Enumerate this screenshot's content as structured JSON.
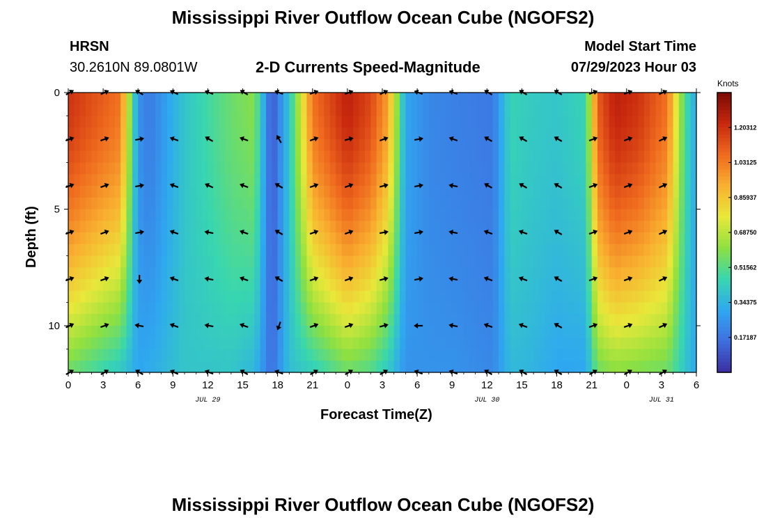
{
  "header": {
    "title": "Mississippi River Outflow Ocean Cube (NGOFS2)",
    "station": "HRSN",
    "coords": "30.2610N  89.0801W",
    "subtitle": "2-D Currents Speed-Magnitude",
    "model_start_label": "Model Start Time",
    "model_start_value": "07/29/2023 Hour 03"
  },
  "footer": {
    "title_repeat": "Mississippi River Outflow Ocean Cube (NGOFS2)"
  },
  "colors": {
    "colormap": [
      "#3b2ea0",
      "#3f6fe0",
      "#2fa8f0",
      "#38d6b0",
      "#8ee040",
      "#e8e83a",
      "#f9b030",
      "#ef6a1e",
      "#c8280e",
      "#7a0a04"
    ]
  },
  "chart_data": {
    "type": "heatmap",
    "title": "2-D Currents Speed-Magnitude",
    "xlabel": "Forecast Time(Z)",
    "ylabel": "Depth (ft)",
    "x_ticks": [
      "0",
      "3",
      "6",
      "9",
      "12",
      "15",
      "18",
      "21",
      "0",
      "3",
      "6",
      "9",
      "12",
      "15",
      "18",
      "21",
      "0",
      "3",
      "6"
    ],
    "x_hours": [
      0,
      3,
      6,
      9,
      12,
      15,
      18,
      21,
      24,
      27,
      30,
      33,
      36,
      39,
      42,
      45,
      48,
      51,
      54
    ],
    "y_ticks": [
      "0",
      "5",
      "10"
    ],
    "y_tick_values": [
      0,
      5,
      10
    ],
    "xlim": [
      0,
      54
    ],
    "ylim": [
      0,
      12
    ],
    "y_inverted": true,
    "date_labels": [
      "JUL 29",
      "JUL 30",
      "JUL 31"
    ],
    "date_label_hours": [
      12,
      36,
      51
    ],
    "colorbar": {
      "units": "Knots",
      "range": [
        0,
        1.375
      ],
      "tick_labels": [
        "1.20312",
        "1.03125",
        "0.85937",
        "0.68750",
        "0.51562",
        "0.34375",
        "0.17187"
      ],
      "tick_values": [
        1.20312,
        1.03125,
        0.85937,
        0.6875,
        0.51562,
        0.34375,
        0.17187
      ]
    },
    "grid": false,
    "speed_hours": [
      0,
      4.5,
      6,
      7,
      10,
      14,
      16,
      17.5,
      19,
      21,
      24,
      26,
      27.5,
      29,
      31,
      33,
      36.5,
      38,
      39.5,
      42,
      44.5,
      45.5,
      47,
      49,
      51.5,
      53,
      54
    ],
    "surface_speed": [
      1.2,
      1.05,
      0.25,
      0.18,
      0.4,
      0.55,
      0.6,
      0.08,
      0.4,
      1.05,
      1.25,
      1.15,
      0.95,
      0.3,
      0.22,
      0.2,
      0.18,
      0.45,
      0.42,
      0.4,
      0.45,
      1.1,
      1.25,
      1.2,
      1.05,
      0.5,
      0.3
    ],
    "bottom_speed": [
      0.55,
      0.4,
      0.3,
      0.32,
      0.4,
      0.4,
      0.35,
      0.15,
      0.38,
      0.42,
      0.55,
      0.5,
      0.4,
      0.25,
      0.25,
      0.25,
      0.22,
      0.36,
      0.35,
      0.3,
      0.3,
      0.55,
      0.6,
      0.58,
      0.55,
      0.4,
      0.3
    ],
    "arrows": {
      "hours": [
        0,
        3,
        6,
        9,
        12,
        15,
        18,
        21,
        24,
        27,
        30,
        33,
        36,
        39,
        42,
        45,
        48,
        51
      ],
      "depths": [
        0,
        2,
        4,
        6,
        8,
        10,
        12
      ],
      "angles_deg": [
        [
          -30,
          -25,
          -150,
          -155,
          -160,
          -150,
          -160,
          -20,
          -20,
          -25,
          -160,
          -160,
          -150,
          -150,
          -150,
          -20,
          -20,
          -25
        ],
        [
          -20,
          -20,
          -10,
          -160,
          -150,
          -160,
          -120,
          -20,
          -15,
          -20,
          -10,
          -160,
          -150,
          -150,
          -150,
          -20,
          -20,
          -25
        ],
        [
          -20,
          -20,
          -10,
          -160,
          -155,
          -160,
          -150,
          -20,
          -20,
          -15,
          -10,
          -170,
          -150,
          -150,
          -150,
          -20,
          -20,
          -25
        ],
        [
          -20,
          -20,
          -10,
          -160,
          -170,
          -160,
          -150,
          -20,
          -20,
          -10,
          -10,
          -170,
          -160,
          -160,
          -150,
          -20,
          -20,
          -25
        ],
        [
          -20,
          -20,
          90,
          -160,
          -170,
          -160,
          -150,
          -20,
          -20,
          -15,
          -10,
          -170,
          -160,
          -160,
          -150,
          -20,
          -20,
          -25
        ],
        [
          -25,
          -20,
          -170,
          -160,
          -170,
          -160,
          110,
          -20,
          -20,
          -15,
          180,
          -170,
          -160,
          -160,
          -150,
          -20,
          -20,
          -25
        ],
        [
          -30,
          -30,
          -150,
          -155,
          -160,
          -150,
          -160,
          -30,
          -30,
          -30,
          -160,
          -160,
          -150,
          -150,
          -150,
          -30,
          -30,
          -30
        ]
      ]
    }
  }
}
